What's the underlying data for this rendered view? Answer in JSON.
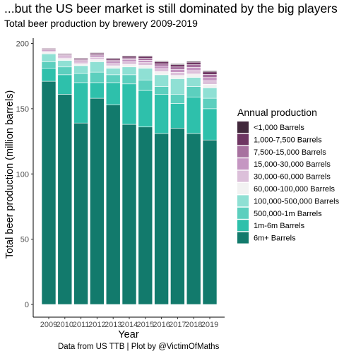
{
  "title": "...but the US beer market is still dominated by the big players",
  "subtitle": "Total beer production by brewery 2009-2019",
  "caption": "Data from US TTB | Plot by @VictimOfMaths",
  "chart_data": {
    "type": "bar",
    "stacked": true,
    "xlabel": "Year",
    "ylabel": "Total beer production (million barrels)",
    "ylim": [
      0,
      200
    ],
    "yticks": [
      0,
      50,
      100,
      150,
      200
    ],
    "grid": false,
    "legend_title": "Annual production",
    "legend_position": "right",
    "categories": [
      "2009",
      "2010",
      "2011",
      "2012",
      "2013",
      "2014",
      "2015",
      "2016",
      "2017",
      "2018",
      "2019"
    ],
    "series": [
      {
        "name": "6m+ Barrels",
        "color": "#127a6c",
        "values": [
          171,
          161,
          139,
          158,
          153,
          138,
          136,
          131,
          135,
          131,
          126
        ]
      },
      {
        "name": "1m-6m Barrels",
        "color": "#2ec0ab",
        "values": [
          10,
          15,
          31,
          12,
          17,
          31,
          28,
          30,
          19,
          28,
          24
        ]
      },
      {
        "name": "500,000-1m Barrels",
        "color": "#5ccfbe",
        "values": [
          5,
          6,
          7,
          8,
          6,
          7,
          8,
          6,
          7,
          8,
          8
        ]
      },
      {
        "name": "100,000-500,000 Barrels",
        "color": "#8fe0d4",
        "values": [
          6,
          5,
          6,
          8,
          5,
          6,
          9,
          9,
          12,
          7,
          8
        ]
      },
      {
        "name": "60,000-100,000 Barrels",
        "color": "#f2f2f2",
        "values": [
          1.2,
          1.5,
          1.5,
          1.8,
          1.9,
          2,
          2.2,
          2.4,
          2.5,
          2.6,
          2.7
        ]
      },
      {
        "name": "30,000-60,000 Barrels",
        "color": "#dcc0da",
        "values": [
          1,
          1.2,
          1.3,
          1.5,
          1.7,
          1.9,
          2.1,
          2.3,
          2.4,
          2.6,
          2.7
        ]
      },
      {
        "name": "15,000-30,000 Barrels",
        "color": "#c596c2",
        "values": [
          0.8,
          1,
          1.1,
          1.3,
          1.5,
          1.7,
          1.8,
          2,
          2.2,
          2.4,
          2.5
        ]
      },
      {
        "name": "7,500-15,000 Barrels",
        "color": "#a7719f",
        "values": [
          0.6,
          0.7,
          0.8,
          1,
          1.1,
          1.3,
          1.5,
          1.7,
          1.9,
          2.1,
          2.3
        ]
      },
      {
        "name": "1,000-7,500 Barrels",
        "color": "#6e3562",
        "values": [
          0.7,
          0.8,
          0.9,
          1,
          1.1,
          1.3,
          1.4,
          1.6,
          1.7,
          1.9,
          2
        ]
      },
      {
        "name": "<1,000 Barrels",
        "color": "#42283c",
        "values": [
          0.3,
          0.3,
          0.4,
          0.4,
          0.5,
          0.5,
          0.6,
          0.6,
          0.7,
          0.7,
          0.8
        ]
      }
    ]
  }
}
